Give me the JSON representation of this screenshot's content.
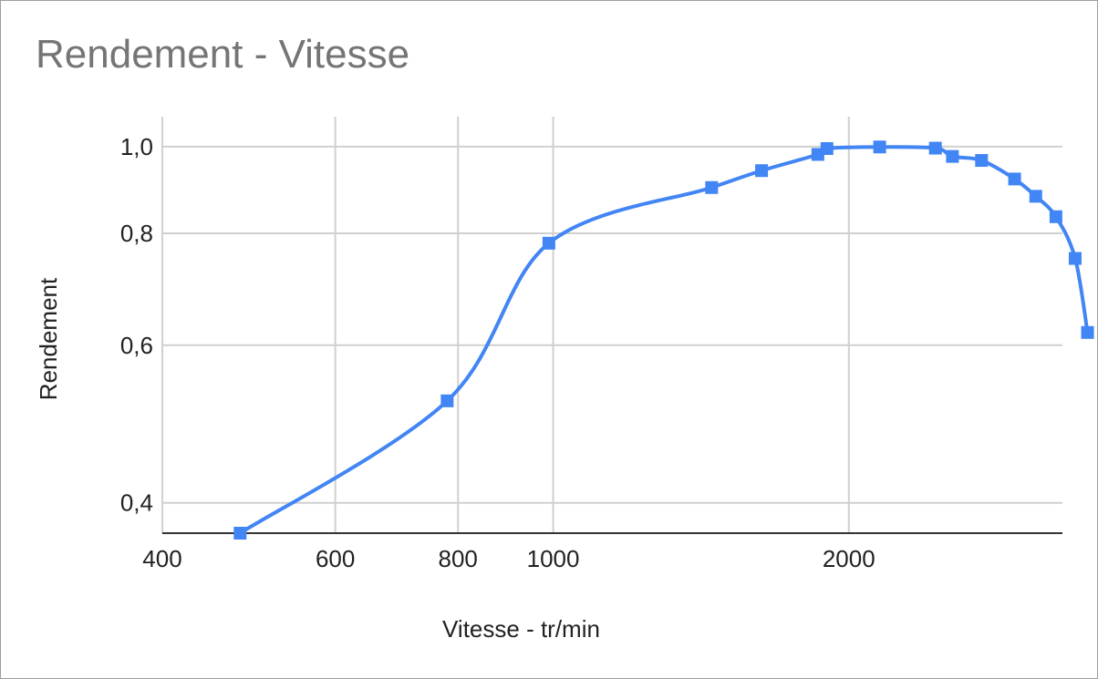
{
  "chart_data": {
    "type": "line",
    "title": "Rendement - Vitesse",
    "xlabel": "Vitesse - tr/min",
    "ylabel": "Rendement",
    "x_scale": "log",
    "y_scale": "log",
    "xlim": [
      400,
      3300
    ],
    "ylim": [
      0.37,
      1.08
    ],
    "grid": true,
    "legend": "none",
    "x_ticks": [
      400,
      600,
      800,
      1000,
      2000
    ],
    "x_tick_labels": [
      "400",
      "600",
      "800",
      "1000",
      "2000"
    ],
    "y_ticks": [
      0.4,
      0.6,
      0.8,
      1.0
    ],
    "y_tick_labels": [
      "0,4",
      "0,6",
      "0,8",
      "1,0"
    ],
    "series": [
      {
        "color": "#4285f4",
        "marker": "square",
        "x": [
          480,
          780,
          990,
          1450,
          1630,
          1860,
          1900,
          2150,
          2450,
          2550,
          2730,
          2950,
          3100,
          3250,
          3400,
          3500
        ],
        "y": [
          0.37,
          0.52,
          0.78,
          0.9,
          0.94,
          0.98,
          0.995,
          0.999,
          0.996,
          0.975,
          0.965,
          0.92,
          0.88,
          0.835,
          0.75,
          0.62
        ]
      }
    ]
  }
}
